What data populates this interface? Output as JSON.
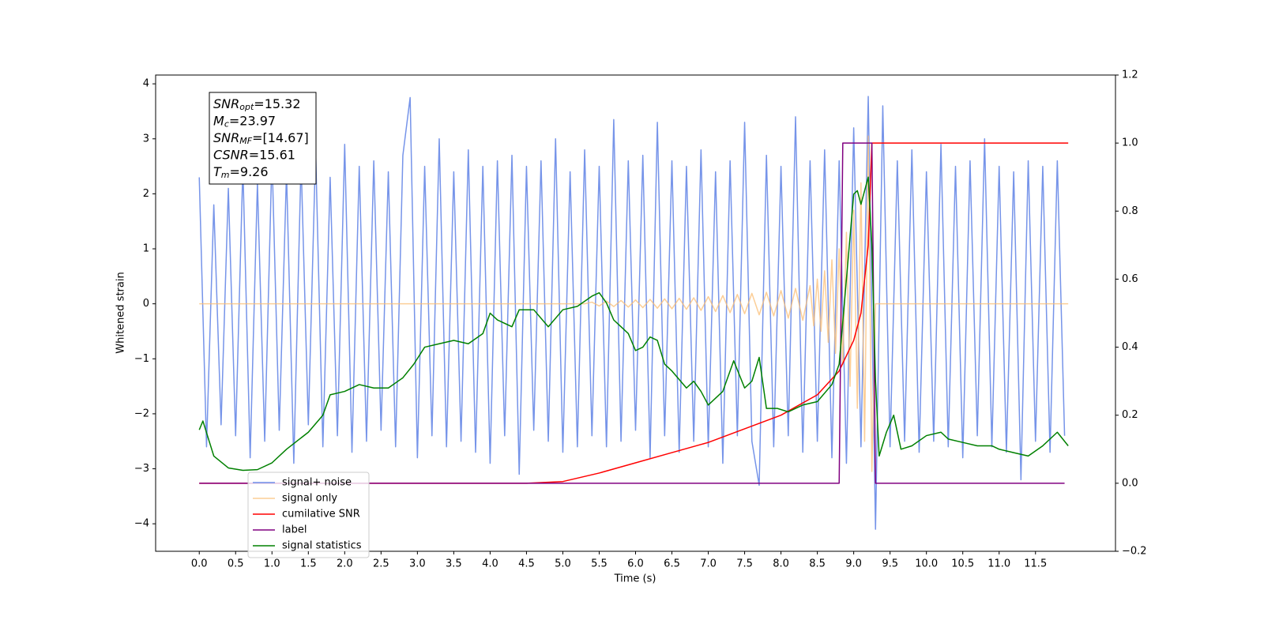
{
  "chart_data": {
    "type": "line",
    "xlabel": "Time (s)",
    "ylabel": "Whitened strain",
    "xlim": [
      -0.6,
      12.6
    ],
    "ylim": [
      -4.5,
      4.16
    ],
    "y2lim": [
      -0.2,
      1.2
    ],
    "xticks": [
      {
        "value": 0,
        "label": "0.0"
      },
      {
        "value": 0.5,
        "label": "0.5"
      },
      {
        "value": 1,
        "label": "1.0"
      },
      {
        "value": 1.5,
        "label": "1.5"
      },
      {
        "value": 2,
        "label": "2.0"
      },
      {
        "value": 2.5,
        "label": "2.5"
      },
      {
        "value": 3,
        "label": "3.0"
      },
      {
        "value": 3.5,
        "label": "3.5"
      },
      {
        "value": 4,
        "label": "4.0"
      },
      {
        "value": 4.5,
        "label": "4.5"
      },
      {
        "value": 5,
        "label": "5.0"
      },
      {
        "value": 5.5,
        "label": "5.5"
      },
      {
        "value": 6,
        "label": "6.0"
      },
      {
        "value": 6.5,
        "label": "6.5"
      },
      {
        "value": 7,
        "label": "7.0"
      },
      {
        "value": 7.5,
        "label": "7.5"
      },
      {
        "value": 8,
        "label": "8.0"
      },
      {
        "value": 8.5,
        "label": "8.5"
      },
      {
        "value": 9,
        "label": "9.0"
      },
      {
        "value": 9.5,
        "label": "9.5"
      },
      {
        "value": 10,
        "label": "10.0"
      },
      {
        "value": 10.5,
        "label": "10.5"
      },
      {
        "value": 11,
        "label": "11.0"
      },
      {
        "value": 11.5,
        "label": "11.5"
      }
    ],
    "yticks": [
      {
        "value": -4,
        "label": "−4"
      },
      {
        "value": -3,
        "label": "−3"
      },
      {
        "value": -2,
        "label": "−2"
      },
      {
        "value": -1,
        "label": "−1"
      },
      0,
      1,
      2,
      3,
      4
    ],
    "y2ticks": [
      {
        "value": -0.2,
        "label": "−0.2"
      },
      {
        "value": 0,
        "label": "0.0"
      },
      {
        "value": 0.2,
        "label": "0.2"
      },
      {
        "value": 0.4,
        "label": "0.4"
      },
      {
        "value": 0.6,
        "label": "0.6"
      },
      {
        "value": 0.8,
        "label": "0.8"
      },
      {
        "value": 1,
        "label": "1.0"
      },
      {
        "value": 1.2,
        "label": "1.2"
      }
    ],
    "legend": "lower left",
    "annotations": [
      {
        "text": "SNR",
        "sub": "opt",
        "rest": "=15.32"
      },
      {
        "text": "M",
        "sub": "c",
        "rest": "=23.97"
      },
      {
        "text": "SNR",
        "sub": "MF",
        "rest": "=[14.67]"
      },
      {
        "text": "CSNR",
        "sub": "",
        "rest": "=15.61"
      },
      {
        "text": "T",
        "sub": "m",
        "rest": "=9.26"
      }
    ],
    "series": [
      {
        "name": "signal+ noise",
        "color": "#6f8ee8",
        "x": [
          0,
          0.1,
          0.2,
          0.3,
          0.4,
          0.5,
          0.6,
          0.7,
          0.8,
          0.9,
          1,
          1.1,
          1.2,
          1.3,
          1.4,
          1.5,
          1.6,
          1.7,
          1.8,
          1.9,
          2,
          2.1,
          2.2,
          2.3,
          2.4,
          2.5,
          2.6,
          2.7,
          2.8,
          2.9,
          3,
          3.1,
          3.2,
          3.3,
          3.4,
          3.5,
          3.6,
          3.7,
          3.8,
          3.9,
          4,
          4.1,
          4.2,
          4.3,
          4.4,
          4.5,
          4.6,
          4.7,
          4.8,
          4.9,
          5,
          5.1,
          5.2,
          5.3,
          5.4,
          5.5,
          5.6,
          5.7,
          5.8,
          5.9,
          6,
          6.1,
          6.2,
          6.3,
          6.4,
          6.5,
          6.6,
          6.7,
          6.8,
          6.9,
          7,
          7.1,
          7.2,
          7.3,
          7.4,
          7.5,
          7.6,
          7.7,
          7.8,
          7.9,
          8,
          8.1,
          8.2,
          8.3,
          8.4,
          8.5,
          8.6,
          8.7,
          8.8,
          8.9,
          9,
          9.1,
          9.2,
          9.3,
          9.4,
          9.5,
          9.6,
          9.7,
          9.8,
          9.9,
          10,
          10.1,
          10.2,
          10.3,
          10.4,
          10.5,
          10.6,
          10.7,
          10.8,
          10.9,
          11,
          11.1,
          11.2,
          11.3,
          11.4,
          11.5,
          11.6,
          11.7,
          11.8,
          11.9
        ],
        "values": [
          2.3,
          -2.6,
          1.8,
          -2.2,
          2.1,
          -2.4,
          2.5,
          -2.8,
          2.2,
          -2.5,
          2.7,
          -2.3,
          2.4,
          -2.9,
          2.6,
          -2.2,
          2.8,
          -2.6,
          2.3,
          -2.4,
          2.9,
          -2.7,
          2.5,
          -2.5,
          2.6,
          -2.3,
          2.4,
          -2.6,
          2.7,
          3.75,
          -2.8,
          2.5,
          -2.4,
          3.0,
          -2.6,
          2.4,
          -2.5,
          2.8,
          -2.7,
          2.5,
          -2.9,
          2.6,
          -2.4,
          2.7,
          -3.1,
          2.5,
          -2.3,
          2.6,
          -2.5,
          3.0,
          -2.7,
          2.4,
          -2.6,
          2.8,
          -2.4,
          2.5,
          -2.6,
          3.35,
          -2.5,
          2.6,
          -2.3,
          2.7,
          -2.8,
          3.3,
          -2.4,
          2.6,
          -2.7,
          2.5,
          -2.5,
          2.8,
          -2.6,
          2.4,
          -2.9,
          2.6,
          -2.4,
          3.3,
          -2.5,
          -3.3,
          2.7,
          -2.6,
          2.5,
          -2.4,
          3.4,
          -2.7,
          2.6,
          -2.5,
          2.8,
          -2.8,
          2.6,
          -2.9,
          3.2,
          -2.6,
          3.77,
          -4.1,
          3.6,
          -2.6,
          2.6,
          -2.5,
          2.8,
          -2.7,
          2.4,
          -2.5,
          2.9,
          -2.6,
          2.5,
          -2.8,
          2.6,
          -2.4,
          3.0,
          -2.6,
          2.5,
          -2.7,
          2.4,
          -3.2,
          2.6,
          -2.5,
          2.5,
          -2.7,
          2.6,
          -2.4
        ]
      },
      {
        "name": "signal only",
        "color": "#fbbd74",
        "x": [
          0,
          5.3,
          5.4,
          5.5,
          5.6,
          5.7,
          5.8,
          5.9,
          6,
          6.1,
          6.2,
          6.3,
          6.4,
          6.5,
          6.6,
          6.7,
          6.8,
          6.9,
          7,
          7.1,
          7.2,
          7.3,
          7.4,
          7.5,
          7.6,
          7.7,
          7.8,
          7.9,
          8,
          8.1,
          8.2,
          8.3,
          8.4,
          8.45,
          8.5,
          8.55,
          8.6,
          8.65,
          8.7,
          8.75,
          8.8,
          8.85,
          8.9,
          8.95,
          9,
          9.05,
          9.1,
          9.15,
          9.2,
          9.25,
          9.3,
          11.95
        ],
        "values": [
          0,
          0,
          0.03,
          -0.04,
          0.05,
          -0.05,
          0.06,
          -0.06,
          0.07,
          -0.07,
          0.08,
          -0.08,
          0.09,
          -0.09,
          0.1,
          -0.1,
          0.11,
          -0.12,
          0.13,
          -0.14,
          0.15,
          -0.16,
          0.17,
          -0.18,
          0.19,
          -0.2,
          0.21,
          -0.22,
          0.24,
          -0.26,
          0.28,
          -0.3,
          0.33,
          -0.4,
          0.45,
          -0.5,
          0.6,
          -0.7,
          0.8,
          -0.9,
          1.0,
          -1.1,
          1.3,
          -1.5,
          1.7,
          -1.9,
          2.2,
          -2.5,
          3.05,
          -3.05,
          0,
          0
        ]
      },
      {
        "name": "cumilative SNR",
        "color": "#ff0000",
        "axis": "y2",
        "x": [
          0,
          4.5,
          5,
          5.5,
          6,
          6.5,
          7,
          7.5,
          8,
          8.5,
          8.8,
          9,
          9.1,
          9.2,
          9.25,
          11.95
        ],
        "values": [
          0,
          0,
          0.005,
          0.03,
          0.06,
          0.09,
          0.12,
          0.16,
          0.2,
          0.26,
          0.33,
          0.42,
          0.5,
          0.7,
          1.0,
          1.0
        ]
      },
      {
        "name": "label",
        "color": "#800080",
        "axis": "y2",
        "x": [
          0,
          8.8,
          8.85,
          9.25,
          9.3,
          11.9
        ],
        "values": [
          0,
          0,
          1.0,
          1.0,
          0,
          0
        ]
      },
      {
        "name": "signal statistics",
        "color": "#008000",
        "axis": "y2",
        "x": [
          0,
          0.05,
          0.2,
          0.4,
          0.6,
          0.8,
          1,
          1.2,
          1.5,
          1.7,
          1.8,
          2,
          2.2,
          2.4,
          2.6,
          2.8,
          2.95,
          3.1,
          3.3,
          3.5,
          3.7,
          3.9,
          4,
          4.1,
          4.3,
          4.4,
          4.6,
          4.8,
          5,
          5.2,
          5.4,
          5.5,
          5.6,
          5.7,
          5.8,
          5.9,
          6,
          6.1,
          6.2,
          6.3,
          6.4,
          6.5,
          6.7,
          6.8,
          6.9,
          7,
          7.2,
          7.35,
          7.5,
          7.6,
          7.7,
          7.8,
          7.95,
          8.1,
          8.3,
          8.5,
          8.7,
          8.8,
          8.9,
          9,
          9.05,
          9.1,
          9.2,
          9.25,
          9.3,
          9.35,
          9.45,
          9.55,
          9.65,
          9.8,
          10,
          10.2,
          10.3,
          10.5,
          10.7,
          10.9,
          11,
          11.2,
          11.4,
          11.6,
          11.8,
          11.95
        ],
        "values": [
          0.157,
          0.183,
          0.08,
          0.045,
          0.038,
          0.04,
          0.06,
          0.1,
          0.15,
          0.2,
          0.26,
          0.27,
          0.29,
          0.28,
          0.28,
          0.31,
          0.35,
          0.4,
          0.41,
          0.42,
          0.41,
          0.44,
          0.5,
          0.48,
          0.46,
          0.51,
          0.51,
          0.46,
          0.51,
          0.52,
          0.55,
          0.56,
          0.53,
          0.48,
          0.46,
          0.44,
          0.39,
          0.4,
          0.43,
          0.42,
          0.35,
          0.33,
          0.28,
          0.3,
          0.27,
          0.23,
          0.27,
          0.36,
          0.28,
          0.3,
          0.37,
          0.22,
          0.22,
          0.21,
          0.23,
          0.24,
          0.29,
          0.35,
          0.6,
          0.85,
          0.86,
          0.82,
          0.9,
          0.7,
          0.3,
          0.08,
          0.15,
          0.2,
          0.1,
          0.11,
          0.14,
          0.15,
          0.13,
          0.12,
          0.11,
          0.11,
          0.1,
          0.09,
          0.08,
          0.11,
          0.15,
          0.11
        ]
      }
    ]
  }
}
